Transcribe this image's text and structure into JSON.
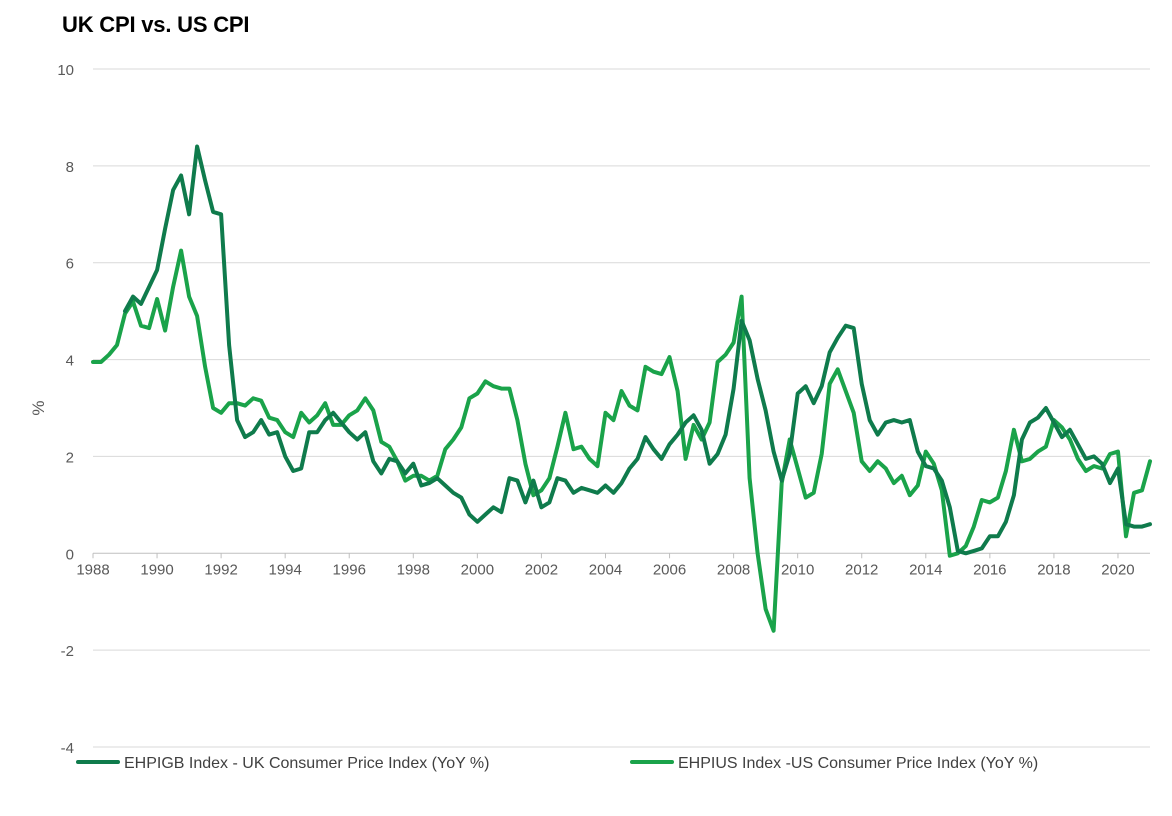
{
  "chart_data": {
    "type": "line",
    "title": "UK CPI vs. US CPI",
    "xlabel": "",
    "ylabel": "%",
    "xlim": [
      1988,
      2021
    ],
    "ylim": [
      -4,
      10
    ],
    "x_ticks": [
      "1988",
      "1990",
      "1992",
      "1994",
      "1996",
      "1998",
      "2000",
      "2002",
      "2004",
      "2006",
      "2008",
      "2010",
      "2012",
      "2014",
      "2016",
      "2018",
      "2020"
    ],
    "y_ticks": [
      "10",
      "8",
      "6",
      "4",
      "2",
      "0",
      "-2",
      "-4"
    ],
    "grid": "horizontal",
    "legend": "bottom",
    "series": [
      {
        "name": "EHPIGB Index - UK Consumer Price Index (YoY %)",
        "color": "#0f7b4c",
        "x": [
          1989.0,
          1989.25,
          1989.5,
          1989.75,
          1990.0,
          1990.25,
          1990.5,
          1990.75,
          1991.0,
          1991.25,
          1991.5,
          1991.75,
          1992.0,
          1992.25,
          1992.5,
          1992.75,
          1993.0,
          1993.25,
          1993.5,
          1993.75,
          1994.0,
          1994.25,
          1994.5,
          1994.75,
          1995.0,
          1995.25,
          1995.5,
          1995.75,
          1996.0,
          1996.25,
          1996.5,
          1996.75,
          1997.0,
          1997.25,
          1997.5,
          1997.75,
          1998.0,
          1998.25,
          1998.5,
          1998.75,
          1999.0,
          1999.25,
          1999.5,
          1999.75,
          2000.0,
          2000.25,
          2000.5,
          2000.75,
          2001.0,
          2001.25,
          2001.5,
          2001.75,
          2002.0,
          2002.25,
          2002.5,
          2002.75,
          2003.0,
          2003.25,
          2003.5,
          2003.75,
          2004.0,
          2004.25,
          2004.5,
          2004.75,
          2005.0,
          2005.25,
          2005.5,
          2005.75,
          2006.0,
          2006.25,
          2006.5,
          2006.75,
          2007.0,
          2007.25,
          2007.5,
          2007.75,
          2008.0,
          2008.25,
          2008.5,
          2008.75,
          2009.0,
          2009.25,
          2009.5,
          2009.75,
          2010.0,
          2010.25,
          2010.5,
          2010.75,
          2011.0,
          2011.25,
          2011.5,
          2011.75,
          2012.0,
          2012.25,
          2012.5,
          2012.75,
          2013.0,
          2013.25,
          2013.5,
          2013.75,
          2014.0,
          2014.25,
          2014.5,
          2014.75,
          2015.0,
          2015.25,
          2015.5,
          2015.75,
          2016.0,
          2016.25,
          2016.5,
          2016.75,
          2017.0,
          2017.25,
          2017.5,
          2017.75,
          2018.0,
          2018.25,
          2018.5,
          2018.75,
          2019.0,
          2019.25,
          2019.5,
          2019.75,
          2020.0,
          2020.25,
          2020.5,
          2020.75,
          2021.0
        ],
        "y": [
          5.0,
          5.3,
          5.15,
          5.5,
          5.85,
          6.7,
          7.5,
          7.8,
          7.0,
          8.4,
          7.7,
          7.05,
          7.0,
          4.3,
          2.75,
          2.4,
          2.5,
          2.75,
          2.45,
          2.5,
          2.0,
          1.7,
          1.75,
          2.5,
          2.5,
          2.75,
          2.9,
          2.7,
          2.5,
          2.35,
          2.5,
          1.9,
          1.65,
          1.95,
          1.9,
          1.65,
          1.85,
          1.4,
          1.45,
          1.55,
          1.4,
          1.25,
          1.15,
          0.8,
          0.65,
          0.8,
          0.95,
          0.85,
          1.55,
          1.5,
          1.05,
          1.5,
          0.95,
          1.05,
          1.55,
          1.5,
          1.25,
          1.35,
          1.3,
          1.25,
          1.4,
          1.25,
          1.45,
          1.75,
          1.95,
          2.4,
          2.15,
          1.95,
          2.25,
          2.45,
          2.7,
          2.85,
          2.55,
          1.85,
          2.05,
          2.45,
          3.4,
          4.8,
          4.4,
          3.6,
          2.95,
          2.1,
          1.5,
          2.05,
          3.3,
          3.45,
          3.1,
          3.45,
          4.15,
          4.45,
          4.7,
          4.65,
          3.5,
          2.75,
          2.45,
          2.7,
          2.75,
          2.7,
          2.75,
          2.1,
          1.8,
          1.75,
          1.5,
          0.95,
          0.05,
          0.0,
          0.05,
          0.1,
          0.35,
          0.35,
          0.65,
          1.2,
          2.35,
          2.7,
          2.8,
          3.0,
          2.7,
          2.4,
          2.55,
          2.25,
          1.95,
          2.0,
          1.85,
          1.45,
          1.75,
          0.6,
          0.55,
          0.55,
          0.6
        ]
      },
      {
        "name": "EHPIUS Index -US Consumer Price Index (YoY %)",
        "color": "#1aa34a",
        "x": [
          1988.0,
          1988.25,
          1988.5,
          1988.75,
          1989.0,
          1989.25,
          1989.5,
          1989.75,
          1990.0,
          1990.25,
          1990.5,
          1990.75,
          1991.0,
          1991.25,
          1991.5,
          1991.75,
          1992.0,
          1992.25,
          1992.5,
          1992.75,
          1993.0,
          1993.25,
          1993.5,
          1993.75,
          1994.0,
          1994.25,
          1994.5,
          1994.75,
          1995.0,
          1995.25,
          1995.5,
          1995.75,
          1996.0,
          1996.25,
          1996.5,
          1996.75,
          1997.0,
          1997.25,
          1997.5,
          1997.75,
          1998.0,
          1998.25,
          1998.5,
          1998.75,
          1999.0,
          1999.25,
          1999.5,
          1999.75,
          2000.0,
          2000.25,
          2000.5,
          2000.75,
          2001.0,
          2001.25,
          2001.5,
          2001.75,
          2002.0,
          2002.25,
          2002.5,
          2002.75,
          2003.0,
          2003.25,
          2003.5,
          2003.75,
          2004.0,
          2004.25,
          2004.5,
          2004.75,
          2005.0,
          2005.25,
          2005.5,
          2005.75,
          2006.0,
          2006.25,
          2006.5,
          2006.75,
          2007.0,
          2007.25,
          2007.5,
          2007.75,
          2008.0,
          2008.25,
          2008.5,
          2008.75,
          2009.0,
          2009.25,
          2009.5,
          2009.75,
          2010.0,
          2010.25,
          2010.5,
          2010.75,
          2011.0,
          2011.25,
          2011.5,
          2011.75,
          2012.0,
          2012.25,
          2012.5,
          2012.75,
          2013.0,
          2013.25,
          2013.5,
          2013.75,
          2014.0,
          2014.25,
          2014.5,
          2014.75,
          2015.0,
          2015.25,
          2015.5,
          2015.75,
          2016.0,
          2016.25,
          2016.5,
          2016.75,
          2017.0,
          2017.25,
          2017.5,
          2017.75,
          2018.0,
          2018.25,
          2018.5,
          2018.75,
          2019.0,
          2019.25,
          2019.5,
          2019.75,
          2020.0,
          2020.25,
          2020.5,
          2020.75,
          2021.0
        ],
        "y": [
          3.95,
          3.95,
          4.1,
          4.3,
          4.95,
          5.2,
          4.7,
          4.65,
          5.25,
          4.6,
          5.5,
          6.25,
          5.3,
          4.9,
          3.85,
          3.0,
          2.9,
          3.1,
          3.1,
          3.05,
          3.2,
          3.15,
          2.8,
          2.75,
          2.5,
          2.4,
          2.9,
          2.7,
          2.85,
          3.1,
          2.65,
          2.65,
          2.85,
          2.95,
          3.2,
          2.95,
          2.3,
          2.2,
          1.9,
          1.5,
          1.6,
          1.6,
          1.5,
          1.6,
          2.15,
          2.35,
          2.6,
          3.2,
          3.3,
          3.55,
          3.45,
          3.4,
          3.4,
          2.75,
          1.85,
          1.2,
          1.3,
          1.55,
          2.2,
          2.9,
          2.15,
          2.2,
          1.95,
          1.8,
          2.9,
          2.75,
          3.35,
          3.05,
          2.95,
          3.85,
          3.75,
          3.7,
          4.05,
          3.35,
          1.95,
          2.65,
          2.35,
          2.7,
          3.95,
          4.1,
          4.35,
          5.3,
          1.55,
          0.0,
          -1.15,
          -1.6,
          1.45,
          2.35,
          1.75,
          1.15,
          1.25,
          2.05,
          3.5,
          3.8,
          3.35,
          2.9,
          1.9,
          1.7,
          1.9,
          1.75,
          1.45,
          1.6,
          1.2,
          1.4,
          2.1,
          1.85,
          1.3,
          -0.05,
          0.0,
          0.15,
          0.55,
          1.1,
          1.05,
          1.15,
          1.7,
          2.55,
          1.9,
          1.95,
          2.1,
          2.2,
          2.75,
          2.6,
          2.35,
          1.95,
          1.7,
          1.8,
          1.75,
          2.05,
          2.1,
          0.35,
          1.25,
          1.3,
          1.9
        ]
      }
    ]
  }
}
